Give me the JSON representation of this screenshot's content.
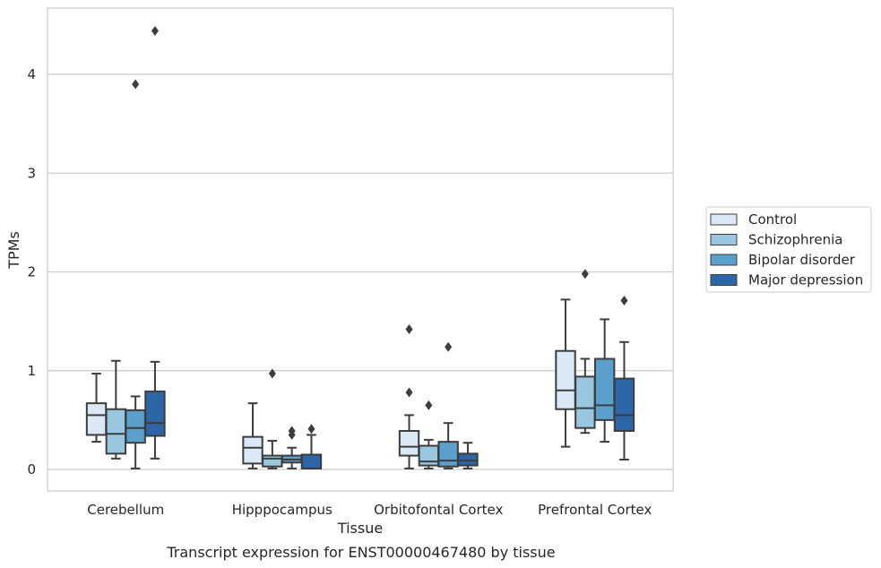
{
  "chart_data": {
    "type": "box",
    "title": "",
    "caption": "Transcript expression for ENST00000467480 by tissue",
    "xlabel": "Tissue",
    "ylabel": "TPMs",
    "ylim": [
      -0.2,
      4.7
    ],
    "yticks": [
      0,
      1,
      2,
      3,
      4
    ],
    "grid": "horizontal",
    "legend_position": "right",
    "categories": [
      "Cerebellum",
      "Hipppocampus",
      "Orbitofontal Cortex",
      "Prefrontal Cortex"
    ],
    "series": [
      {
        "name": "Control",
        "color": "#dbe9f6",
        "boxes": [
          {
            "whisker_low": 0.28,
            "q1": 0.35,
            "median": 0.55,
            "q3": 0.67,
            "whisker_high": 0.97,
            "outliers": []
          },
          {
            "whisker_low": 0.01,
            "q1": 0.06,
            "median": 0.22,
            "q3": 0.33,
            "whisker_high": 0.67,
            "outliers": []
          },
          {
            "whisker_low": 0.01,
            "q1": 0.14,
            "median": 0.23,
            "q3": 0.39,
            "whisker_high": 0.55,
            "outliers": [
              0.78,
              1.42
            ]
          },
          {
            "whisker_low": 0.23,
            "q1": 0.61,
            "median": 0.8,
            "q3": 1.2,
            "whisker_high": 1.72,
            "outliers": []
          }
        ]
      },
      {
        "name": "Schizophrenia",
        "color": "#9ac7e0",
        "boxes": [
          {
            "whisker_low": 0.11,
            "q1": 0.16,
            "median": 0.36,
            "q3": 0.61,
            "whisker_high": 1.1,
            "outliers": []
          },
          {
            "whisker_low": 0.01,
            "q1": 0.03,
            "median": 0.11,
            "q3": 0.14,
            "whisker_high": 0.29,
            "outliers": [
              0.97
            ]
          },
          {
            "whisker_low": 0.01,
            "q1": 0.04,
            "median": 0.08,
            "q3": 0.24,
            "whisker_high": 0.3,
            "outliers": [
              0.65
            ]
          },
          {
            "whisker_low": 0.37,
            "q1": 0.42,
            "median": 0.62,
            "q3": 0.94,
            "whisker_high": 1.12,
            "outliers": [
              1.98
            ]
          }
        ]
      },
      {
        "name": "Bipolar disorder",
        "color": "#5b9fcd",
        "boxes": [
          {
            "whisker_low": 0.01,
            "q1": 0.27,
            "median": 0.42,
            "q3": 0.6,
            "whisker_high": 0.74,
            "outliers": [
              3.9
            ]
          },
          {
            "whisker_low": 0.01,
            "q1": 0.07,
            "median": 0.1,
            "q3": 0.14,
            "whisker_high": 0.22,
            "outliers": [
              0.35,
              0.39
            ]
          },
          {
            "whisker_low": 0.01,
            "q1": 0.03,
            "median": 0.09,
            "q3": 0.28,
            "whisker_high": 0.47,
            "outliers": [
              1.24
            ]
          },
          {
            "whisker_low": 0.28,
            "q1": 0.5,
            "median": 0.65,
            "q3": 1.12,
            "whisker_high": 1.52,
            "outliers": []
          }
        ]
      },
      {
        "name": "Major depression",
        "color": "#2c66a6",
        "boxes": [
          {
            "whisker_low": 0.11,
            "q1": 0.34,
            "median": 0.47,
            "q3": 0.79,
            "whisker_high": 1.09,
            "outliers": [
              4.44
            ]
          },
          {
            "whisker_low": 0.01,
            "q1": 0.01,
            "median": 0.01,
            "q3": 0.15,
            "whisker_high": 0.35,
            "outliers": [
              0.41
            ]
          },
          {
            "whisker_low": 0.01,
            "q1": 0.04,
            "median": 0.09,
            "q3": 0.16,
            "whisker_high": 0.27,
            "outliers": []
          },
          {
            "whisker_low": 0.1,
            "q1": 0.39,
            "median": 0.55,
            "q3": 0.92,
            "whisker_high": 1.29,
            "outliers": [
              1.71
            ]
          }
        ]
      }
    ]
  }
}
